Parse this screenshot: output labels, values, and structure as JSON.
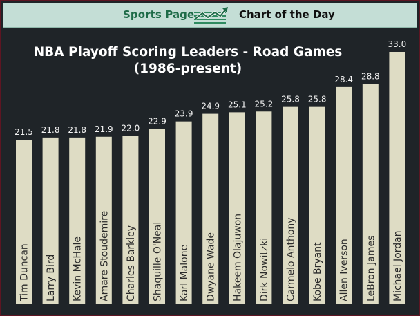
{
  "header": {
    "brand": "Sports Page",
    "subtitle": "Chart of the Day",
    "icon": "trending-up-chart-icon"
  },
  "colors": {
    "background": "#1f2428",
    "bar": "#dedcc4",
    "frame": "#5e1522",
    "header_bg": "#c4ded6",
    "brand": "#1e6b48"
  },
  "chart_data": {
    "type": "bar",
    "title_line1": "NBA Playoff Scoring Leaders - Road Games",
    "title_line2": "(1986-present)",
    "xlabel": "",
    "ylabel": "",
    "ylim": [
      0,
      33
    ],
    "grid": false,
    "categories": [
      "Tim Duncan",
      "Larry Bird",
      "Kevin McHale",
      "Amare Stoudemire",
      "Charles Barkley",
      "Shaquille O'Neal",
      "Karl Malone",
      "Dwyane Wade",
      "Hakeem Olajuwon",
      "Dirk Nowitzki",
      "Carmelo Anthony",
      "Kobe Bryant",
      "Allen Iverson",
      "LeBron James",
      "Michael Jordan"
    ],
    "values": [
      21.5,
      21.8,
      21.8,
      21.9,
      22.0,
      22.9,
      23.9,
      24.9,
      25.1,
      25.2,
      25.8,
      25.8,
      28.4,
      28.8,
      33.0
    ],
    "value_labels": [
      "21.5",
      "21.8",
      "21.8",
      "21.9",
      "22.0",
      "22.9",
      "23.9",
      "24.9",
      "25.1",
      "25.2",
      "25.8",
      "25.8",
      "28.4",
      "28.8",
      "33.0"
    ]
  }
}
